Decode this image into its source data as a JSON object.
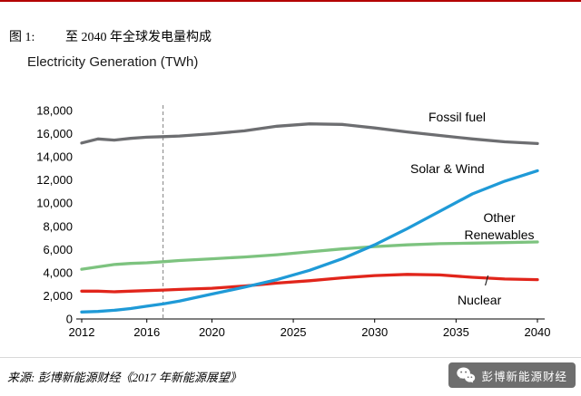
{
  "page": {
    "figure_label": "图 1:",
    "figure_title": "至 2040 年全球发电量构成",
    "chart_heading": "Electricity Generation (TWh)",
    "source": "来源: 彭博新能源财经《2017 年新能源展望》",
    "brand_text": "彭博新能源财经"
  },
  "colors": {
    "top_rule": "#b30000",
    "fossil": "#6d6e71",
    "solar_wind": "#1f9ad7",
    "other_renewables": "#7dc37f",
    "nuclear": "#e1251b",
    "divider_dash": "#808080",
    "axis": "#000000"
  },
  "chart_data": {
    "type": "line",
    "title": "Electricity Generation (TWh)",
    "xlabel": "",
    "ylabel": "TWh",
    "xlim": [
      2012,
      2040
    ],
    "ylim": [
      0,
      18000
    ],
    "ytick_step": 2000,
    "xticks": [
      2012,
      2016,
      2020,
      2025,
      2030,
      2035,
      2040
    ],
    "forecast_divider_x": 2017,
    "grid": false,
    "legend_position": "inline-labels",
    "x": [
      2012,
      2013,
      2014,
      2015,
      2016,
      2017,
      2018,
      2020,
      2022,
      2024,
      2026,
      2028,
      2030,
      2032,
      2034,
      2036,
      2038,
      2040
    ],
    "series": [
      {
        "name": "Fossil fuel",
        "color": "#6d6e71",
        "values": [
          15200,
          15550,
          15450,
          15600,
          15700,
          15750,
          15800,
          16000,
          16250,
          16650,
          16850,
          16800,
          16500,
          16150,
          15850,
          15550,
          15300,
          15150
        ]
      },
      {
        "name": "Other Renewables",
        "color": "#7dc37f",
        "values": [
          4300,
          4500,
          4700,
          4800,
          4850,
          4950,
          5050,
          5200,
          5350,
          5550,
          5800,
          6050,
          6250,
          6400,
          6500,
          6550,
          6600,
          6650
        ]
      },
      {
        "name": "Nuclear",
        "color": "#e1251b",
        "values": [
          2400,
          2400,
          2350,
          2400,
          2450,
          2500,
          2550,
          2650,
          2850,
          3100,
          3300,
          3550,
          3750,
          3850,
          3800,
          3600,
          3450,
          3400
        ]
      },
      {
        "name": "Solar & Wind",
        "color": "#1f9ad7",
        "values": [
          600,
          650,
          750,
          900,
          1100,
          1300,
          1550,
          2150,
          2750,
          3400,
          4200,
          5200,
          6400,
          7800,
          9300,
          10800,
          11900,
          12800
        ]
      }
    ],
    "labels": {
      "fossil": "Fossil fuel",
      "solar": "Solar & Wind",
      "other_line1": "Other",
      "other_line2": "Renewables",
      "nuclear": "Nuclear",
      "nuclear_leader": "/"
    }
  }
}
